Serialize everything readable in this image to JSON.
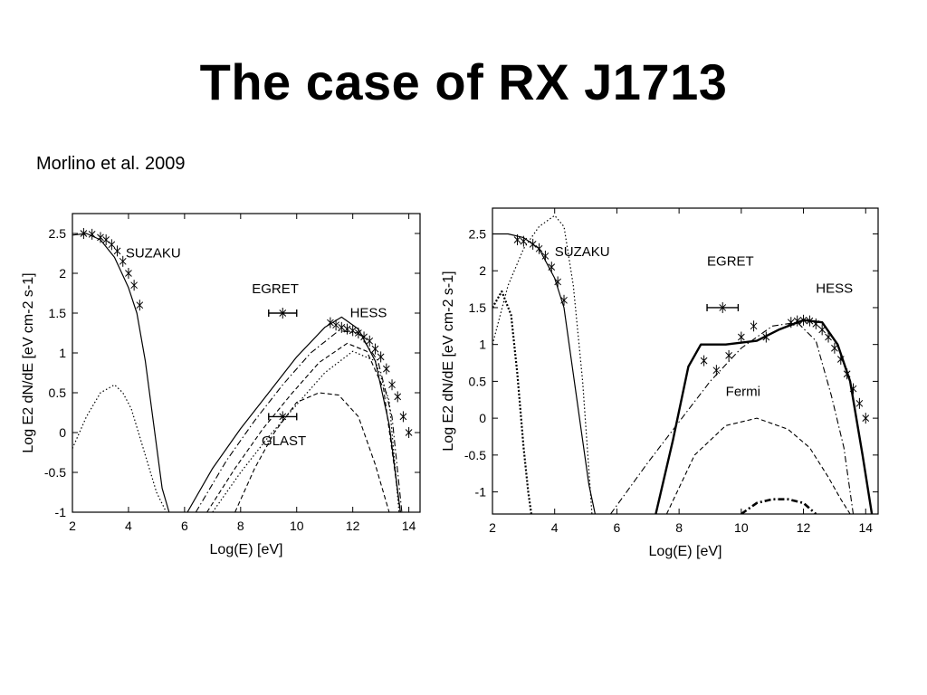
{
  "slide": {
    "title": "The case of RX J1713",
    "subtitle": "Morlino et al. 2009"
  },
  "chart_data": [
    {
      "type": "line",
      "xlabel": "Log(E) [eV]",
      "ylabel": "Log E2 dN/dE [eV cm-2 s-1]",
      "xlim": [
        2,
        14.4
      ],
      "ylim": [
        -1,
        2.75
      ],
      "xticks": [
        2,
        4,
        6,
        8,
        10,
        12,
        14
      ],
      "yticks": [
        -1,
        -0.5,
        0,
        0.5,
        1,
        1.5,
        2,
        2.5
      ],
      "grid": false,
      "annotations": [
        {
          "text": "SUZAKU",
          "x": 3.9,
          "y": 2.2
        },
        {
          "text": "EGRET",
          "x": 8.4,
          "y": 1.75
        },
        {
          "text": "HESS",
          "x": 11.9,
          "y": 1.45
        },
        {
          "text": "GLAST",
          "x": 8.75,
          "y": -0.16
        }
      ],
      "curves": [
        {
          "style": "solid",
          "x": [
            2,
            2.5,
            3,
            3.5,
            4,
            4.3,
            4.6,
            4.9,
            5.2,
            5.45
          ],
          "y": [
            2.48,
            2.5,
            2.42,
            2.2,
            1.82,
            1.5,
            0.9,
            0.1,
            -0.7,
            -1
          ]
        },
        {
          "style": "dotted",
          "x": [
            2,
            2.5,
            3,
            3.5,
            3.8,
            4.1,
            4.4,
            4.7,
            5.0,
            5.35
          ],
          "y": [
            -0.2,
            0.2,
            0.5,
            0.6,
            0.5,
            0.3,
            -0.05,
            -0.4,
            -0.75,
            -1
          ]
        },
        {
          "style": "solid",
          "x": [
            6.1,
            7,
            8,
            9,
            10,
            11,
            11.6,
            12.2,
            12.8,
            13.3,
            13.7
          ],
          "y": [
            -1,
            -0.45,
            0.05,
            0.5,
            0.95,
            1.32,
            1.45,
            1.3,
            0.9,
            0.1,
            -1
          ]
        },
        {
          "style": "dashdot",
          "x": [
            6.4,
            7.5,
            8.5,
            9.5,
            10.5,
            11.5,
            12.2,
            12.9,
            13.4,
            13.75
          ],
          "y": [
            -1,
            -0.35,
            0.15,
            0.6,
            1.0,
            1.28,
            1.25,
            0.9,
            0.2,
            -1
          ]
        },
        {
          "style": "dashed",
          "x": [
            6.8,
            7.8,
            8.8,
            9.8,
            10.8,
            11.8,
            12.5,
            13.1,
            13.7
          ],
          "y": [
            -1,
            -0.45,
            0.05,
            0.48,
            0.88,
            1.12,
            1.02,
            0.55,
            -1
          ]
        },
        {
          "style": "dotted",
          "x": [
            7.0,
            8,
            9,
            10,
            11,
            12,
            12.8,
            13.3,
            13.65
          ],
          "y": [
            -1,
            -0.5,
            -0.05,
            0.35,
            0.75,
            1.02,
            0.9,
            0.4,
            -1
          ]
        },
        {
          "style": "dashed",
          "x": [
            7.8,
            8.5,
            9.2,
            10,
            10.8,
            11.5,
            12.2,
            12.8,
            13.3
          ],
          "y": [
            -1,
            -0.45,
            0.0,
            0.38,
            0.5,
            0.47,
            0.2,
            -0.4,
            -1
          ]
        }
      ],
      "data_points": [
        {
          "name": "SUZAKU",
          "x": [
            2.4,
            2.7,
            3.0,
            3.2,
            3.4,
            3.6,
            3.8,
            4.0,
            4.2,
            4.4
          ],
          "y": [
            2.5,
            2.49,
            2.45,
            2.42,
            2.36,
            2.28,
            2.15,
            2.0,
            1.85,
            1.6
          ]
        },
        {
          "name": "EGRET",
          "x": [
            9.5
          ],
          "y": [
            1.5
          ],
          "xerr": [
            0.5
          ]
        },
        {
          "name": "GLAST",
          "x": [
            9.5
          ],
          "y": [
            0.2
          ],
          "xerr": [
            0.5
          ]
        },
        {
          "name": "HESS",
          "x": [
            11.2,
            11.4,
            11.6,
            11.8,
            12.0,
            12.2,
            12.4,
            12.6,
            12.8,
            13.0,
            13.2,
            13.4,
            13.6,
            13.8,
            14.0
          ],
          "y": [
            1.38,
            1.35,
            1.32,
            1.3,
            1.28,
            1.25,
            1.2,
            1.15,
            1.05,
            0.95,
            0.8,
            0.6,
            0.45,
            0.2,
            0.0
          ]
        }
      ]
    },
    {
      "type": "line",
      "xlabel": "Log(E) [eV]",
      "ylabel": "Log E2 dN/dE [eV cm-2 s-1]",
      "xlim": [
        2,
        14.4
      ],
      "ylim": [
        -1.3,
        2.85
      ],
      "xticks": [
        2,
        4,
        6,
        8,
        10,
        12,
        14
      ],
      "yticks": [
        -1,
        -0.5,
        0,
        0.5,
        1,
        1.5,
        2,
        2.5
      ],
      "grid": false,
      "annotations": [
        {
          "text": "SUZAKU",
          "x": 4.0,
          "y": 2.2
        },
        {
          "text": "EGRET",
          "x": 8.9,
          "y": 2.07
        },
        {
          "text": "HESS",
          "x": 12.4,
          "y": 1.7
        },
        {
          "text": "Fermi",
          "x": 9.5,
          "y": 0.3
        }
      ],
      "curves": [
        {
          "style": "solid",
          "x": [
            2,
            2.5,
            3,
            3.5,
            4,
            4.3,
            4.6,
            4.9,
            5.1,
            5.3
          ],
          "y": [
            2.5,
            2.5,
            2.45,
            2.3,
            1.9,
            1.5,
            0.6,
            -0.3,
            -0.9,
            -1.3
          ]
        },
        {
          "style": "dotted",
          "x": [
            2,
            2.5,
            3,
            3.5,
            4.0,
            4.3,
            4.6,
            4.9,
            5.2
          ],
          "y": [
            1.0,
            1.8,
            2.3,
            2.6,
            2.75,
            2.6,
            1.8,
            0.5,
            -1.3
          ]
        },
        {
          "style": "dotted-bold",
          "x": [
            2,
            2.3,
            2.6,
            2.8,
            3.0,
            3.15,
            3.25
          ],
          "y": [
            1.5,
            1.72,
            1.4,
            0.6,
            -0.4,
            -1.0,
            -1.3
          ]
        },
        {
          "style": "solid-bold",
          "x": [
            7.25,
            7.8,
            8.3,
            8.7,
            9.5,
            10.5,
            11.2,
            12.0,
            12.6,
            13.1,
            13.5,
            13.9,
            14.2
          ],
          "y": [
            -1.3,
            -0.3,
            0.7,
            1.0,
            1.0,
            1.05,
            1.2,
            1.33,
            1.3,
            1.0,
            0.5,
            -0.5,
            -1.3
          ]
        },
        {
          "style": "dashdot",
          "x": [
            5.8,
            7,
            8,
            9,
            10,
            11,
            11.8,
            12.4,
            12.9,
            13.3,
            13.6
          ],
          "y": [
            -1.3,
            -0.6,
            -0.05,
            0.5,
            0.95,
            1.25,
            1.3,
            1.05,
            0.3,
            -0.4,
            -1.3
          ]
        },
        {
          "style": "dashed",
          "x": [
            7.6,
            8.5,
            9.5,
            10.5,
            11.5,
            12.2,
            12.8,
            13.2,
            13.5
          ],
          "y": [
            -1.3,
            -0.5,
            -0.1,
            0.0,
            -0.15,
            -0.4,
            -0.8,
            -1.1,
            -1.3
          ]
        },
        {
          "style": "dashdot-bold",
          "x": [
            10.0,
            10.5,
            11.0,
            11.5,
            12.0,
            12.4
          ],
          "y": [
            -1.3,
            -1.15,
            -1.1,
            -1.1,
            -1.15,
            -1.3
          ]
        }
      ],
      "data_points": [
        {
          "name": "SUZAKU",
          "x": [
            2.8,
            3.0,
            3.3,
            3.5,
            3.7,
            3.9,
            4.1,
            4.3
          ],
          "y": [
            2.42,
            2.4,
            2.36,
            2.3,
            2.2,
            2.05,
            1.85,
            1.6
          ]
        },
        {
          "name": "EGRET",
          "x": [
            9.4
          ],
          "y": [
            1.5
          ],
          "xerr": [
            0.5
          ]
        },
        {
          "name": "Fermi",
          "x": [
            8.8,
            9.2,
            9.6,
            10.0,
            10.4,
            10.8
          ],
          "y": [
            0.78,
            0.65,
            0.85,
            1.1,
            1.25,
            1.1
          ]
        },
        {
          "name": "HESS",
          "x": [
            11.6,
            11.8,
            12.0,
            12.2,
            12.4,
            12.6,
            12.8,
            13.0,
            13.2,
            13.4,
            13.6,
            13.8,
            14.0
          ],
          "y": [
            1.3,
            1.32,
            1.33,
            1.32,
            1.28,
            1.2,
            1.1,
            0.95,
            0.8,
            0.6,
            0.4,
            0.2,
            0.0
          ]
        }
      ]
    }
  ]
}
